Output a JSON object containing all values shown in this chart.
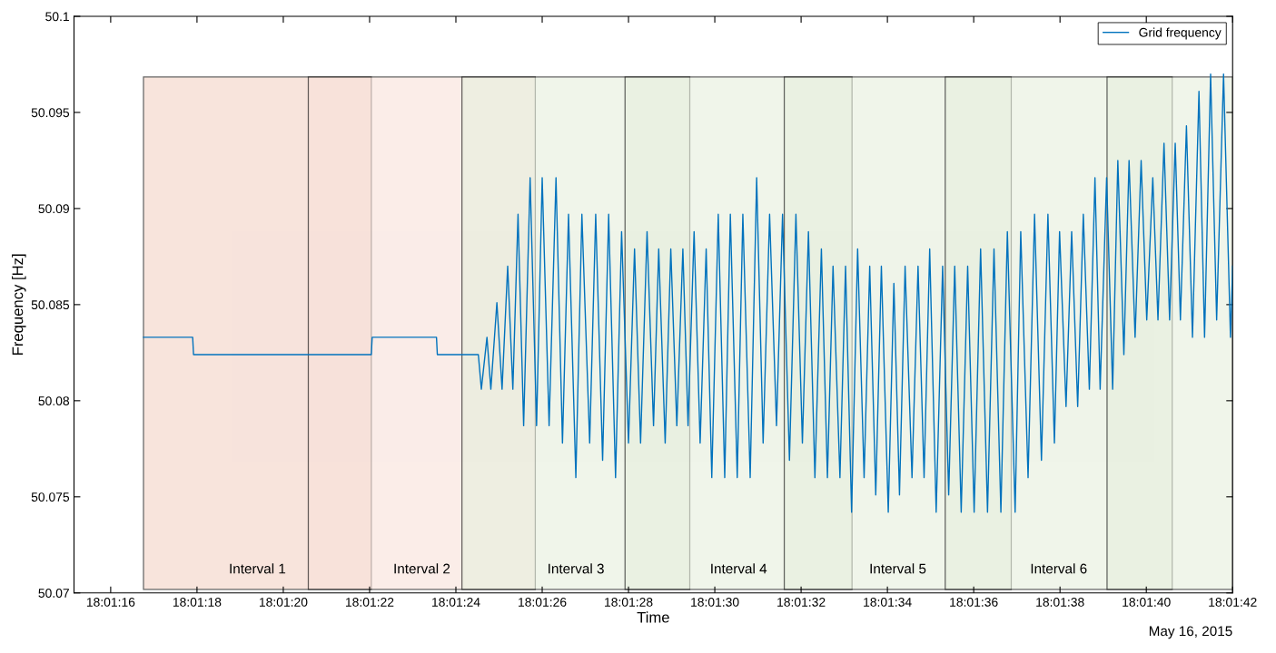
{
  "chart_data": {
    "type": "line",
    "xlabel": "Time",
    "ylabel": "Frequency [Hz]",
    "annotations": [
      "May 16, 2015"
    ],
    "xlim": [
      "2015-05-16T18:01:15.15",
      "2015-05-16T18:01:42"
    ],
    "xticks": [
      {
        "value": "2015-05-16T18:01:16",
        "label": "18:01:16"
      },
      {
        "value": "2015-05-16T18:01:18",
        "label": "18:01:18"
      },
      {
        "value": "2015-05-16T18:01:20",
        "label": "18:01:20"
      },
      {
        "value": "2015-05-16T18:01:22",
        "label": "18:01:22"
      },
      {
        "value": "2015-05-16T18:01:24",
        "label": "18:01:24"
      },
      {
        "value": "2015-05-16T18:01:26",
        "label": "18:01:26"
      },
      {
        "value": "2015-05-16T18:01:28",
        "label": "18:01:28"
      },
      {
        "value": "2015-05-16T18:01:30",
        "label": "18:01:30"
      },
      {
        "value": "2015-05-16T18:01:32",
        "label": "18:01:32"
      },
      {
        "value": "2015-05-16T18:01:34",
        "label": "18:01:34"
      },
      {
        "value": "2015-05-16T18:01:36",
        "label": "18:01:36"
      },
      {
        "value": "2015-05-16T18:01:38",
        "label": "18:01:38"
      },
      {
        "value": "2015-05-16T18:01:40",
        "label": "18:01:40"
      },
      {
        "value": "2015-05-16T18:01:42",
        "label": "18:01:42"
      }
    ],
    "ylim": [
      50.07,
      50.1
    ],
    "yticks": [
      50.07,
      50.075,
      50.08,
      50.085,
      50.09,
      50.095,
      50.1
    ],
    "grid": false,
    "legend": "top right",
    "marker": "none",
    "line_style": "solid",
    "bands": [
      {
        "axis": "x",
        "from": "2015-05-16T18:01:16.76",
        "to": "2015-05-16T18:01:22.04",
        "label": "Interval 1",
        "color": "#f3d2c5"
      },
      {
        "axis": "x",
        "from": "2015-05-16T18:01:20.58",
        "to": "2015-05-16T18:01:25.84",
        "label": "Interval 2",
        "color": "#f8e1d9"
      },
      {
        "axis": "x",
        "from": "2015-05-16T18:01:24.14",
        "to": "2015-05-16T18:01:29.42",
        "label": "Interval 3",
        "color": "#e6eedc"
      },
      {
        "axis": "x",
        "from": "2015-05-16T18:01:27.92",
        "to": "2015-05-16T18:01:33.18",
        "label": "Interval 4",
        "color": "#e6eedc"
      },
      {
        "axis": "x",
        "from": "2015-05-16T18:01:31.61",
        "to": "2015-05-16T18:01:36.87",
        "label": "Interval 5",
        "color": "#e6eedc"
      },
      {
        "axis": "x",
        "from": "2015-05-16T18:01:35.34",
        "to": "2015-05-16T18:01:40.6",
        "label": "Interval 6",
        "color": "#e6eedc"
      },
      {
        "axis": "x",
        "from": "2015-05-16T18:01:39.09",
        "to": "2015-05-16T18:01:42",
        "label": null,
        "color": "#e6eedc"
      }
    ],
    "series": [
      {
        "name": "Grid frequency",
        "color": "#0072bd",
        "x": [
          "2015-05-16T18:01:16.76",
          "2015-05-16T18:01:17.9",
          "2015-05-16T18:01:17.92",
          "2015-05-16T18:01:22.04",
          "2015-05-16T18:01:22.06",
          "2015-05-16T18:01:23.55",
          "2015-05-16T18:01:23.57",
          "2015-05-16T18:01:24.52",
          "2015-05-16T18:01:24.59",
          "2015-05-16T18:01:24.72",
          "2015-05-16T18:01:24.81",
          "2015-05-16T18:01:24.95",
          "2015-05-16T18:01:25.07",
          "2015-05-16T18:01:25.2",
          "2015-05-16T18:01:25.32",
          "2015-05-16T18:01:25.44",
          "2015-05-16T18:01:25.57",
          "2015-05-16T18:01:25.72",
          "2015-05-16T18:01:25.87",
          "2015-05-16T18:01:26",
          "2015-05-16T18:01:26.16",
          "2015-05-16T18:01:26.32",
          "2015-05-16T18:01:26.47",
          "2015-05-16T18:01:26.61",
          "2015-05-16T18:01:26.78",
          "2015-05-16T18:01:26.92",
          "2015-05-16T18:01:27.1",
          "2015-05-16T18:01:27.24",
          "2015-05-16T18:01:27.4",
          "2015-05-16T18:01:27.54",
          "2015-05-16T18:01:27.7",
          "2015-05-16T18:01:27.84",
          "2015-05-16T18:01:28",
          "2015-05-16T18:01:28.14",
          "2015-05-16T18:01:28.28",
          "2015-05-16T18:01:28.43",
          "2015-05-16T18:01:28.58",
          "2015-05-16T18:01:28.7",
          "2015-05-16T18:01:28.85",
          "2015-05-16T18:01:28.98",
          "2015-05-16T18:01:29.12",
          "2015-05-16T18:01:29.26",
          "2015-05-16T18:01:29.38",
          "2015-05-16T18:01:29.52",
          "2015-05-16T18:01:29.66",
          "2015-05-16T18:01:29.8",
          "2015-05-16T18:01:29.93",
          "2015-05-16T18:01:30.08",
          "2015-05-16T18:01:30.23",
          "2015-05-16T18:01:30.36",
          "2015-05-16T18:01:30.52",
          "2015-05-16T18:01:30.65",
          "2015-05-16T18:01:30.82",
          "2015-05-16T18:01:30.97",
          "2015-05-16T18:01:31.12",
          "2015-05-16T18:01:31.27",
          "2015-05-16T18:01:31.43",
          "2015-05-16T18:01:31.57",
          "2015-05-16T18:01:31.73",
          "2015-05-16T18:01:31.88",
          "2015-05-16T18:01:32.03",
          "2015-05-16T18:01:32.17",
          "2015-05-16T18:01:32.32",
          "2015-05-16T18:01:32.47",
          "2015-05-16T18:01:32.61",
          "2015-05-16T18:01:32.74",
          "2015-05-16T18:01:32.9",
          "2015-05-16T18:01:33.03",
          "2015-05-16T18:01:33.17",
          "2015-05-16T18:01:33.31",
          "2015-05-16T18:01:33.46",
          "2015-05-16T18:01:33.59",
          "2015-05-16T18:01:33.73",
          "2015-05-16T18:01:33.86",
          "2015-05-16T18:01:34.02",
          "2015-05-16T18:01:34.15",
          "2015-05-16T18:01:34.28",
          "2015-05-16T18:01:34.41",
          "2015-05-16T18:01:34.57",
          "2015-05-16T18:01:34.71",
          "2015-05-16T18:01:34.85",
          "2015-05-16T18:01:34.98",
          "2015-05-16T18:01:35.13",
          "2015-05-16T18:01:35.28",
          "2015-05-16T18:01:35.42",
          "2015-05-16T18:01:35.56",
          "2015-05-16T18:01:35.71",
          "2015-05-16T18:01:35.86",
          "2015-05-16T18:01:36.01",
          "2015-05-16T18:01:36.16",
          "2015-05-16T18:01:36.32",
          "2015-05-16T18:01:36.47",
          "2015-05-16T18:01:36.63",
          "2015-05-16T18:01:36.78",
          "2015-05-16T18:01:36.96",
          "2015-05-16T18:01:37.09",
          "2015-05-16T18:01:37.26",
          "2015-05-16T18:01:37.41",
          "2015-05-16T18:01:37.57",
          "2015-05-16T18:01:37.72",
          "2015-05-16T18:01:37.87",
          "2015-05-16T18:01:37.99",
          "2015-05-16T18:01:38.14",
          "2015-05-16T18:01:38.27",
          "2015-05-16T18:01:38.41",
          "2015-05-16T18:01:38.54",
          "2015-05-16T18:01:38.68",
          "2015-05-16T18:01:38.81",
          "2015-05-16T18:01:38.93",
          "2015-05-16T18:01:39.08",
          "2015-05-16T18:01:39.22",
          "2015-05-16T18:01:39.34",
          "2015-05-16T18:01:39.48",
          "2015-05-16T18:01:39.6",
          "2015-05-16T18:01:39.74",
          "2015-05-16T18:01:39.88",
          "2015-05-16T18:01:40.01",
          "2015-05-16T18:01:40.15",
          "2015-05-16T18:01:40.27",
          "2015-05-16T18:01:40.41",
          "2015-05-16T18:01:40.54",
          "2015-05-16T18:01:40.67",
          "2015-05-16T18:01:40.79",
          "2015-05-16T18:01:40.93",
          "2015-05-16T18:01:41.07",
          "2015-05-16T18:01:41.22",
          "2015-05-16T18:01:41.35",
          "2015-05-16T18:01:41.49",
          "2015-05-16T18:01:41.63",
          "2015-05-16T18:01:41.79",
          "2015-05-16T18:01:41.95",
          "2015-05-16T18:01:42"
        ],
        "values": [
          50.0833,
          50.0833,
          50.0824,
          50.0824,
          50.0833,
          50.0833,
          50.0824,
          50.0824,
          50.0806,
          50.0833,
          50.0806,
          50.0851,
          50.0806,
          50.087,
          50.0806,
          50.0897,
          50.0787,
          50.0916,
          50.0787,
          50.0916,
          50.0787,
          50.0916,
          50.0778,
          50.0897,
          50.076,
          50.0897,
          50.0778,
          50.0897,
          50.0769,
          50.0897,
          50.076,
          50.0888,
          50.0778,
          50.0879,
          50.0778,
          50.0888,
          50.0787,
          50.0879,
          50.0778,
          50.0879,
          50.0787,
          50.0879,
          50.0787,
          50.0888,
          50.0778,
          50.0879,
          50.076,
          50.0897,
          50.076,
          50.0897,
          50.076,
          50.0897,
          50.076,
          50.0916,
          50.0778,
          50.0897,
          50.0787,
          50.0897,
          50.0769,
          50.0897,
          50.0778,
          50.0888,
          50.076,
          50.0879,
          50.076,
          50.087,
          50.076,
          50.087,
          50.0742,
          50.0879,
          50.076,
          50.087,
          50.0751,
          50.087,
          50.0742,
          50.0861,
          50.0751,
          50.087,
          50.076,
          50.087,
          50.076,
          50.0879,
          50.0742,
          50.087,
          50.0751,
          50.087,
          50.0742,
          50.087,
          50.0742,
          50.0879,
          50.0742,
          50.0879,
          50.0742,
          50.0888,
          50.0742,
          50.0888,
          50.076,
          50.0897,
          50.0769,
          50.0897,
          50.0778,
          50.0888,
          50.0797,
          50.0888,
          50.0797,
          50.0897,
          50.0806,
          50.0916,
          50.0806,
          50.0916,
          50.0806,
          50.0925,
          50.0824,
          50.0925,
          50.0833,
          50.0925,
          50.0842,
          50.0916,
          50.0842,
          50.0934,
          50.0842,
          50.0934,
          50.0842,
          50.0943,
          50.0833,
          50.0961,
          50.0833,
          50.097,
          50.0842,
          50.097,
          50.0833,
          50.087
        ]
      }
    ]
  }
}
